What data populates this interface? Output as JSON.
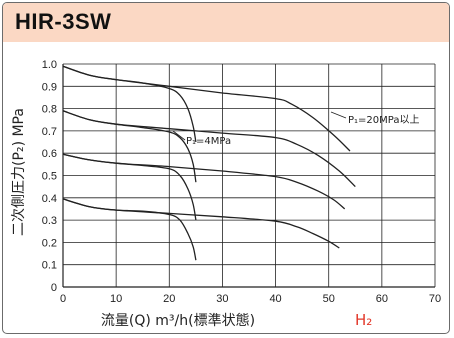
{
  "header": {
    "title": "HIR-3SW"
  },
  "colors": {
    "header_band": "#fbd8c4",
    "curve": "#222222",
    "grid": "#222222",
    "h2_label": "#e2382a"
  },
  "chart_data": {
    "type": "line",
    "title": "HIR-3SW",
    "xlabel": "流量(Q) m³/h(標準状態)",
    "ylabel": "二次側圧力(P₂) MPa",
    "x_ticks": [
      "0",
      "10",
      "20",
      "30",
      "40",
      "50",
      "60",
      "70"
    ],
    "y_ticks": [
      "0",
      "0.1",
      "0.2",
      "0.3",
      "0.4",
      "0.5",
      "0.6",
      "0.7",
      "0.8",
      "0.9",
      "1.0"
    ],
    "xlim": [
      0,
      70
    ],
    "ylim": [
      0,
      1.0
    ],
    "grid": true,
    "annotations": [
      {
        "text": "P₁=20MPa以上"
      },
      {
        "text": "P₁=4MPa"
      },
      {
        "text": "H₂"
      }
    ],
    "series": [
      {
        "set_point": 1.0,
        "x": [
          0,
          5,
          10,
          20,
          30,
          40,
          43,
          47,
          51,
          54
        ],
        "y": [
          0.99,
          0.95,
          0.93,
          0.9,
          0.87,
          0.845,
          0.82,
          0.76,
          0.68,
          0.61
        ]
      },
      {
        "set_point": 0.8,
        "x": [
          0,
          5,
          10,
          20,
          30,
          40,
          44,
          48,
          52,
          55
        ],
        "y": [
          0.79,
          0.75,
          0.73,
          0.71,
          0.69,
          0.67,
          0.64,
          0.59,
          0.52,
          0.45
        ]
      },
      {
        "set_point": 0.6,
        "x": [
          0,
          5,
          10,
          20,
          30,
          40,
          44,
          48,
          51,
          53
        ],
        "y": [
          0.595,
          0.57,
          0.555,
          0.54,
          0.52,
          0.495,
          0.47,
          0.43,
          0.39,
          0.35
        ]
      },
      {
        "set_point": 0.4,
        "x": [
          0,
          5,
          10,
          20,
          30,
          40,
          44,
          47,
          50,
          52
        ],
        "y": [
          0.395,
          0.36,
          0.345,
          0.33,
          0.315,
          0.295,
          0.27,
          0.24,
          0.205,
          0.175
        ]
      },
      {
        "set_point": 1.0,
        "x": [
          0,
          5,
          10,
          15,
          20,
          22,
          23.5,
          24.5,
          25
        ],
        "y": [
          0.99,
          0.95,
          0.93,
          0.915,
          0.89,
          0.86,
          0.8,
          0.72,
          0.65
        ]
      },
      {
        "set_point": 0.8,
        "x": [
          0,
          5,
          10,
          15,
          20,
          22,
          23.5,
          24.5,
          25
        ],
        "y": [
          0.79,
          0.75,
          0.73,
          0.715,
          0.695,
          0.67,
          0.62,
          0.55,
          0.47
        ]
      },
      {
        "set_point": 0.6,
        "x": [
          0,
          5,
          10,
          15,
          20,
          22,
          23.5,
          24.5,
          25
        ],
        "y": [
          0.595,
          0.57,
          0.555,
          0.545,
          0.53,
          0.5,
          0.44,
          0.37,
          0.3
        ]
      },
      {
        "set_point": 0.4,
        "x": [
          0,
          5,
          10,
          15,
          20,
          22,
          23.5,
          24.5,
          25
        ],
        "y": [
          0.395,
          0.36,
          0.345,
          0.34,
          0.325,
          0.3,
          0.24,
          0.18,
          0.12
        ]
      }
    ]
  }
}
